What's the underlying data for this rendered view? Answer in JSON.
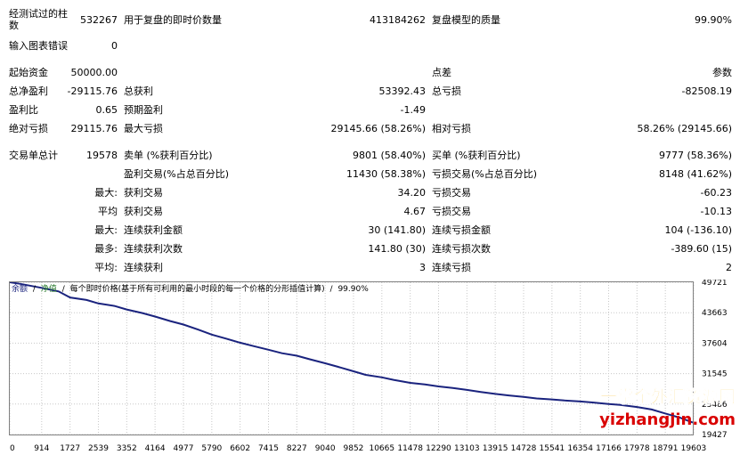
{
  "stats": {
    "row1": {
      "bars_label": "经测试过的柱数",
      "bars_value": "532267",
      "ticks_label": "用于复盘的即时价数量",
      "ticks_value": "413184262",
      "quality_label": "复盘模型的质量",
      "quality_value": "99.90%"
    },
    "row2": {
      "mismatch_label": "输入图表错误",
      "mismatch_value": "0"
    },
    "row3": {
      "deposit_label": "起始资金",
      "deposit_value": "50000.00",
      "spread_label": "点差",
      "spread_value": "参数"
    },
    "row4": {
      "net_label": "总净盈利",
      "net_value": "-29115.76",
      "gross_profit_label": "总获利",
      "gross_profit_value": "53392.43",
      "gross_loss_label": "总亏损",
      "gross_loss_value": "-82508.19"
    },
    "row5": {
      "pf_label": "盈利比",
      "pf_value": "0.65",
      "ep_label": "预期盈利",
      "ep_value": "-1.49"
    },
    "row6": {
      "abs_dd_label": "绝对亏损",
      "abs_dd_value": "29115.76",
      "max_dd_label": "最大亏损",
      "max_dd_value": "29145.66 (58.26%)",
      "rel_dd_label": "相对亏损",
      "rel_dd_value": "58.26% (29145.66)"
    },
    "row7": {
      "trades_label": "交易单总计",
      "trades_value": "19578",
      "short_label": "卖单 (%获利百分比)",
      "short_value": "9801 (58.40%)",
      "long_label": "买单 (%获利百分比)",
      "long_value": "9777 (58.36%)"
    },
    "row8": {
      "profit_trades_label": "盈利交易(%占总百分比)",
      "profit_trades_value": "11430 (58.38%)",
      "loss_trades_label": "亏损交易(%占总百分比)",
      "loss_trades_value": "8148 (41.62%)"
    },
    "row9": {
      "prefix": "最大:",
      "largest_profit_label": "获利交易",
      "largest_profit_value": "34.20",
      "largest_loss_label": "亏损交易",
      "largest_loss_value": "-60.23"
    },
    "row10": {
      "prefix": "平均",
      "avg_profit_label": "获利交易",
      "avg_profit_value": "4.67",
      "avg_loss_label": "亏损交易",
      "avg_loss_value": "-10.13"
    },
    "row11": {
      "prefix": "最大:",
      "max_cons_wins_label": "连续获利金额",
      "max_cons_wins_value": "30 (141.80)",
      "max_cons_losses_label": "连续亏损金额",
      "max_cons_losses_value": "104 (-136.10)"
    },
    "row12": {
      "prefix": "最多:",
      "max_cons_profit_label": "连续获利次数",
      "max_cons_profit_value": "141.80 (30)",
      "max_cons_loss_label": "连续亏损次数",
      "max_cons_loss_value": "-389.60 (15)"
    },
    "row13": {
      "prefix": "平均:",
      "avg_cons_wins_label": "连续获利",
      "avg_cons_wins_value": "3",
      "avg_cons_losses_label": "连续亏损",
      "avg_cons_losses_value": "2"
    }
  },
  "chart_header": {
    "balance_label": "余额",
    "equity_label": "净值",
    "sep": "/",
    "method_text": "每个即时价格(基于所有可利用的最小时段的每一个价格的分形插值计算)",
    "quality_text": "99.90%"
  },
  "watermark": {
    "text_cn": "一掌金外汇资源网",
    "text_url": "yizhangjin.com"
  },
  "chart_data": {
    "type": "line",
    "x_ticks": [
      "0",
      "914",
      "1727",
      "2539",
      "3352",
      "4164",
      "4977",
      "5790",
      "6602",
      "7415",
      "8227",
      "9040",
      "9852",
      "10665",
      "11478",
      "12290",
      "13103",
      "13915",
      "14728",
      "15541",
      "16354",
      "17166",
      "17978",
      "18791",
      "19603"
    ],
    "y_ticks": [
      "49721",
      "43663",
      "37604",
      "31545",
      "25486",
      "19427"
    ],
    "xlim": [
      0,
      19578
    ],
    "ylim": [
      19427,
      49721
    ],
    "series": [
      {
        "color": "#1a237e",
        "x": [
          0,
          300,
          914,
          1400,
          1727,
          2200,
          2539,
          3000,
          3352,
          3800,
          4164,
          4600,
          4977,
          5400,
          5790,
          6200,
          6602,
          7000,
          7415,
          7800,
          8227,
          8600,
          9040,
          9400,
          9852,
          10200,
          10665,
          11000,
          11478,
          11900,
          12290,
          12700,
          13103,
          13500,
          13915,
          14300,
          14728,
          15100,
          15541,
          15900,
          16354,
          16700,
          17166,
          17500,
          17978,
          18400,
          18791,
          19200,
          19578
        ],
        "y": [
          50000,
          49400,
          48600,
          47900,
          46700,
          46200,
          45500,
          45000,
          44300,
          43600,
          42900,
          42000,
          41300,
          40300,
          39300,
          38500,
          37700,
          37000,
          36300,
          35600,
          35100,
          34400,
          33600,
          32900,
          32000,
          31300,
          30800,
          30300,
          29700,
          29400,
          29000,
          28700,
          28300,
          27900,
          27500,
          27200,
          26900,
          26600,
          26400,
          26200,
          26000,
          25800,
          25500,
          25300,
          24900,
          24400,
          23600,
          22800,
          21800
        ]
      }
    ]
  }
}
